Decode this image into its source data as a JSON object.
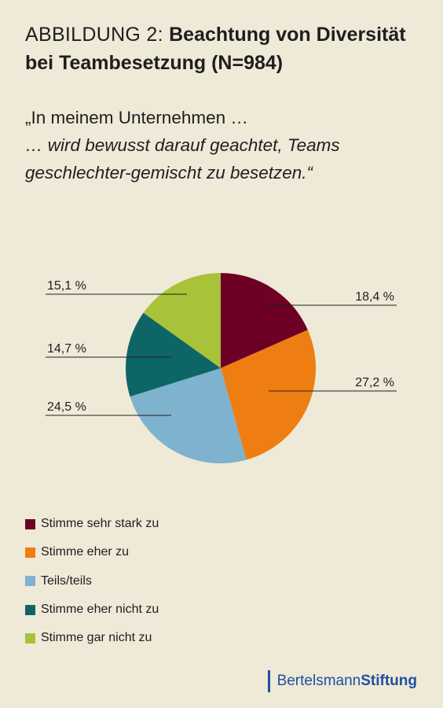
{
  "title": {
    "prefix": "ABBILDUNG 2: ",
    "main": "Beachtung von Diversität bei Teambesetzung (N=984)"
  },
  "quote": {
    "line1": "„In meinem Unternehmen …",
    "line2": "… wird bewusst darauf geachtet, Teams geschlechter-gemischt zu besetzen.“"
  },
  "chart_data": {
    "type": "pie",
    "start_angle_deg": 0,
    "direction": "clockwise",
    "slices": [
      {
        "label": "Stimme sehr stark zu",
        "value": 18.4,
        "value_label": "18,4 %",
        "color": "#6e0026"
      },
      {
        "label": "Stimme eher zu",
        "value": 27.2,
        "value_label": "27,2 %",
        "color": "#ee7d12"
      },
      {
        "label": "Teils/teils",
        "value": 24.5,
        "value_label": "24,5 %",
        "color": "#7eb2cf"
      },
      {
        "label": "Stimme eher nicht zu",
        "value": 14.7,
        "value_label": "14,7 %",
        "color": "#0e6565"
      },
      {
        "label": "Stimme gar nicht zu",
        "value": 15.1,
        "value_label": "15,1 %",
        "color": "#a8c33a"
      }
    ],
    "legend_position": "bottom-left"
  },
  "logo": {
    "part1": "Bertelsmann",
    "part2": "Stiftung"
  }
}
